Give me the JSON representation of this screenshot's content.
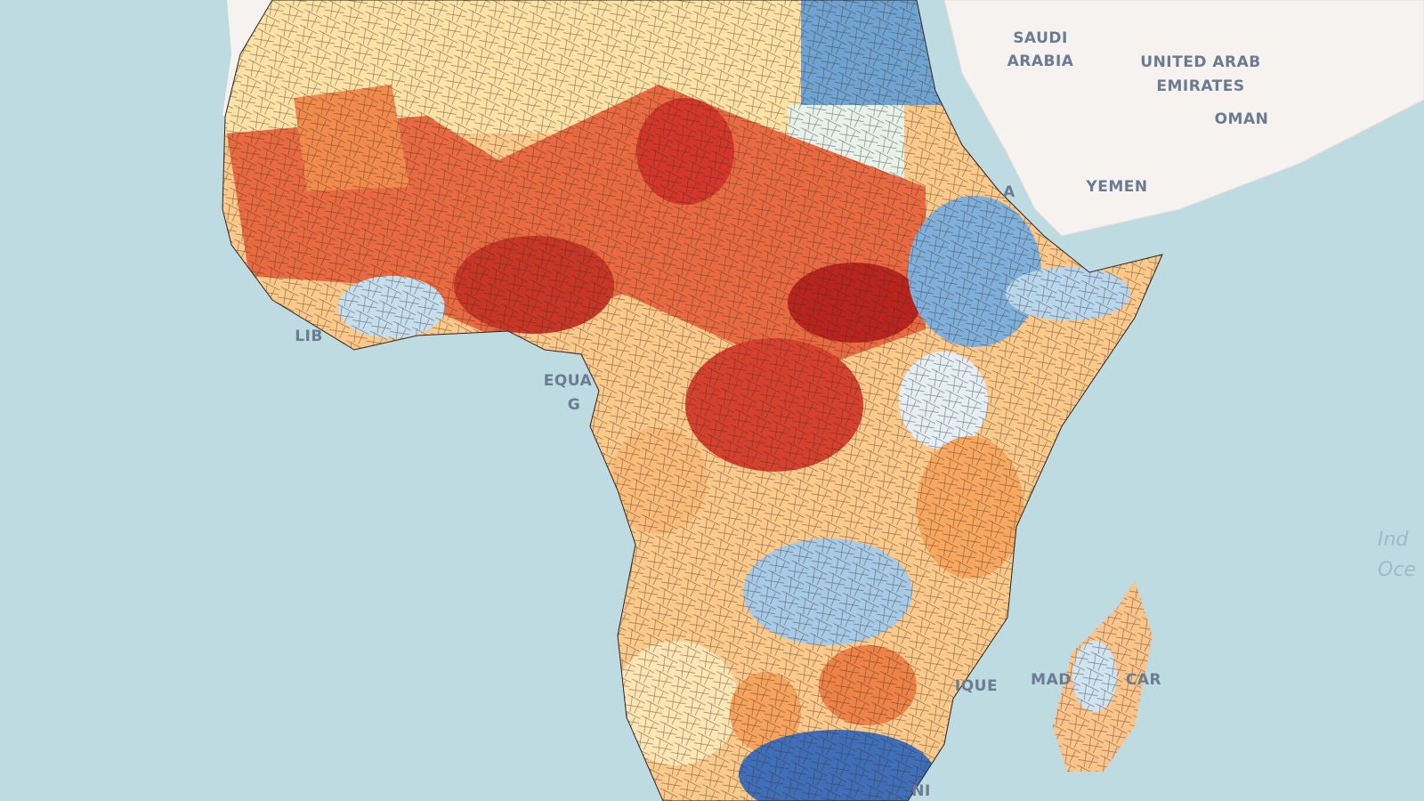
{
  "labels": [
    "SAUDI",
    "ARABIA",
    "UNITED ARAB",
    "EMIRATES",
    "OMAN",
    "YEMEN",
    "A",
    "LIB",
    "EQUA",
    "G",
    "IQUE",
    "MAD",
    "CAR",
    "NI"
  ],
  "ocean_labels": [
    "Ind",
    "Oce"
  ]
}
